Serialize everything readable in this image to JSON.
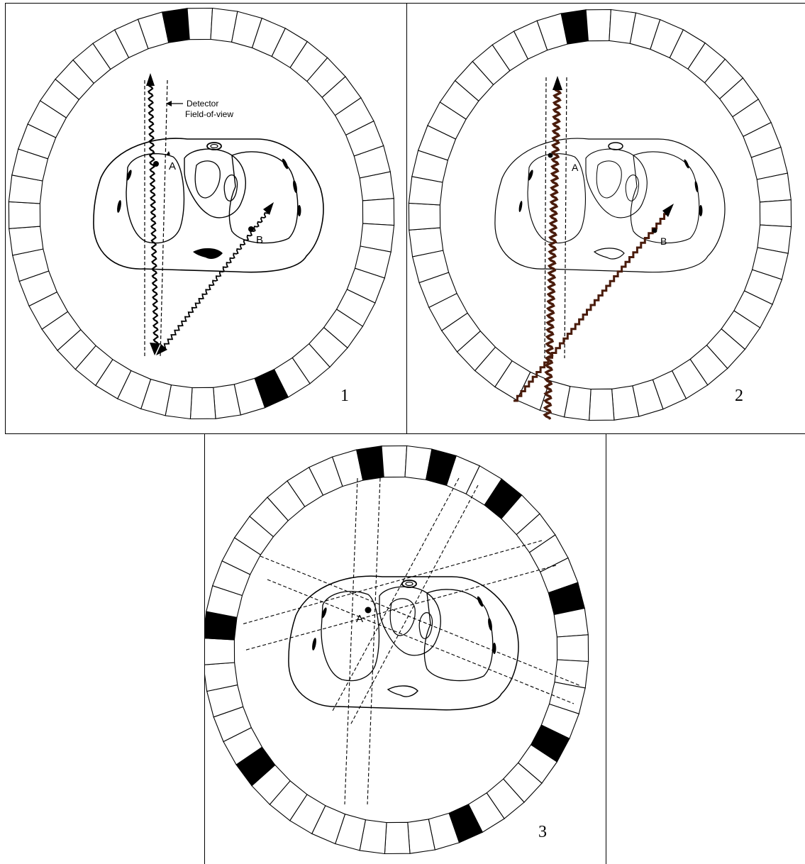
{
  "panels": [
    {
      "number": "1",
      "annotation": {
        "line1": "Detector",
        "line2": "Field-of-view"
      },
      "points": {
        "a": "A",
        "b": "B"
      }
    },
    {
      "number": "2",
      "points": {
        "a": "A",
        "b": "B"
      }
    },
    {
      "number": "3",
      "points": {
        "a": "A"
      }
    }
  ],
  "colors": {
    "line": "#000000",
    "photon_path_brown": "#4a1c0c",
    "detector_active": "#000000"
  },
  "ring": {
    "segments": 48
  }
}
